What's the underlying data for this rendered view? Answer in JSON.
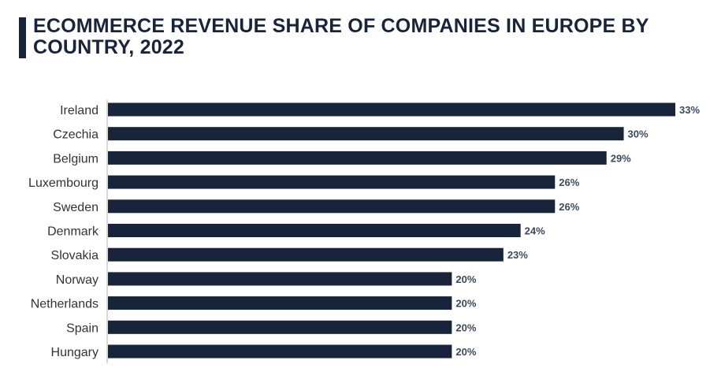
{
  "colors": {
    "bar": "#17243a",
    "axis": "#b0b0b0",
    "title": "#17243a"
  },
  "chart_data": {
    "type": "bar",
    "orientation": "horizontal",
    "title": "ECOMMERCE REVENUE SHARE OF COMPANIES IN EUROPE BY COUNTRY, 2022",
    "categories": [
      "Ireland",
      "Czechia",
      "Belgium",
      "Luxembourg",
      "Sweden",
      "Denmark",
      "Slovakia",
      "Norway",
      "Netherlands",
      "Spain",
      "Hungary"
    ],
    "values": [
      33,
      30,
      29,
      26,
      26,
      24,
      23,
      20,
      20,
      20,
      20
    ],
    "value_labels": [
      "33%",
      "30%",
      "29%",
      "26%",
      "26%",
      "24%",
      "23%",
      "20%",
      "20%",
      "20%",
      "20%"
    ],
    "xlabel": "",
    "ylabel": "",
    "xlim": [
      0,
      33
    ],
    "grid": false,
    "legend": "none"
  }
}
